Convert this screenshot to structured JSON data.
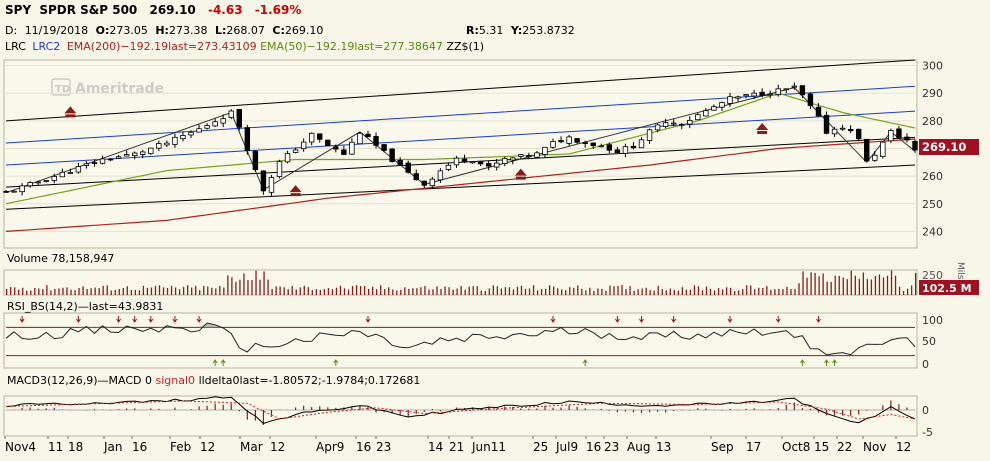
{
  "header": {
    "symbol": "SPY",
    "name": "SPDR S&P 500",
    "last": "269.10",
    "change": "-4.63",
    "change_pct": "-1.69%",
    "bar_label": "D:",
    "date": "11/19/2018",
    "open_label": "O:",
    "open": "273.05",
    "high_label": "H:",
    "high": "273.38",
    "low_label": "L:",
    "low": "268.07",
    "close_label": "C:",
    "close": "269.10",
    "r_label": "R:",
    "r": "5.31",
    "y_label": "Y:",
    "y": "253.8732"
  },
  "indicators": {
    "lrc": "LRC",
    "lrc2": "LRC2",
    "ema200": "EMA(200)",
    "ema200_vals": "−192.19last=273.43109",
    "ema50": "EMA(50)",
    "ema50_vals": "−192.19last=277.38647",
    "zz": "ZZ$(1)"
  },
  "watermark": "Ameritrade",
  "price_badge": "269.10",
  "volume_panel": {
    "label": "Volume 78,158,947",
    "badge": "102.5 M",
    "unit": "Mils",
    "tick": "250"
  },
  "rsi_panel": {
    "label": "RSI_BS(14,2)—last=43.9831",
    "ticks": [
      "100",
      "50",
      "0"
    ]
  },
  "macd_panel": {
    "label_a": "MACD3(12,26,9)—MACD 0",
    "label_b": "signal0",
    "label_c": "lldelta0last=-1.80572;-1.9784;0.172681",
    "ticks": [
      "0",
      "-5"
    ]
  },
  "x_axis_labels": [
    "Nov4",
    "11",
    "18",
    "Jan",
    "16",
    "Feb",
    "12",
    "Mar",
    "12",
    "Apr9",
    "16",
    "23",
    "14",
    "21",
    "Jun11",
    "25",
    "Jul9",
    "16",
    "23",
    "Aug",
    "13",
    "Sep",
    "17",
    "Oct8",
    "15",
    "22",
    "Nov",
    "12"
  ],
  "colors": {
    "background": "#f7f6e8",
    "ema200": "#b02020",
    "ema50": "#7aa020",
    "regression_channel": "#000000",
    "regression_inner": "#1a3cc8",
    "badge": "#a01020",
    "header_negative": "#cc0000"
  },
  "chart_data": {
    "type": "candlestick",
    "title": "SPY SPDR S&P 500",
    "ylim": [
      234,
      302
    ],
    "y_ticks": [
      240,
      250,
      260,
      270,
      280,
      290,
      300
    ],
    "close_path": [
      [
        0,
        254
      ],
      [
        4,
        258
      ],
      [
        8,
        262
      ],
      [
        12,
        266
      ],
      [
        16,
        268
      ],
      [
        20,
        272
      ],
      [
        24,
        277
      ],
      [
        28,
        283
      ],
      [
        29,
        278
      ],
      [
        31,
        262
      ],
      [
        32,
        255
      ],
      [
        34,
        265
      ],
      [
        36,
        270
      ],
      [
        38,
        275
      ],
      [
        40,
        271
      ],
      [
        42,
        268
      ],
      [
        44,
        276
      ],
      [
        46,
        271
      ],
      [
        48,
        266
      ],
      [
        50,
        261
      ],
      [
        52,
        257
      ],
      [
        54,
        262
      ],
      [
        56,
        266
      ],
      [
        58,
        266
      ],
      [
        60,
        263
      ],
      [
        62,
        266
      ],
      [
        64,
        267
      ],
      [
        66,
        268
      ],
      [
        68,
        272
      ],
      [
        70,
        274
      ],
      [
        72,
        272
      ],
      [
        74,
        271
      ],
      [
        76,
        269
      ],
      [
        78,
        271
      ],
      [
        80,
        276
      ],
      [
        82,
        280
      ],
      [
        84,
        279
      ],
      [
        86,
        282
      ],
      [
        88,
        285
      ],
      [
        90,
        288
      ],
      [
        92,
        289
      ],
      [
        94,
        290
      ],
      [
        96,
        291
      ],
      [
        98,
        292
      ],
      [
        99,
        289
      ],
      [
        100,
        285
      ],
      [
        101,
        281
      ],
      [
        102,
        276
      ],
      [
        104,
        278
      ],
      [
        106,
        274
      ],
      [
        107,
        265
      ],
      [
        108,
        268
      ],
      [
        110,
        276
      ],
      [
        112,
        273
      ],
      [
        113,
        269
      ]
    ],
    "ema200": [
      [
        0,
        240
      ],
      [
        20,
        244
      ],
      [
        40,
        252
      ],
      [
        60,
        258
      ],
      [
        80,
        264
      ],
      [
        96,
        270
      ],
      [
        113,
        273.43
      ]
    ],
    "ema50": [
      [
        0,
        250
      ],
      [
        20,
        262
      ],
      [
        36,
        266
      ],
      [
        52,
        266
      ],
      [
        70,
        268
      ],
      [
        86,
        280
      ],
      [
        96,
        290
      ],
      [
        104,
        283
      ],
      [
        113,
        277.39
      ]
    ],
    "regression_lines": [
      [
        [
          0,
          280
        ],
        [
          113,
          302
        ]
      ],
      [
        [
          0,
          272
        ],
        [
          113,
          292.5
        ]
      ],
      [
        [
          0,
          264
        ],
        [
          113,
          283.5
        ]
      ],
      [
        [
          0,
          256
        ],
        [
          113,
          274
        ]
      ],
      [
        [
          0,
          248
        ],
        [
          113,
          264
        ]
      ]
    ],
    "last_close": 269.1,
    "volume_badge_millions": 102.5,
    "rsi_last": 43.9831,
    "macd_last": -1.80572,
    "macd_signal_last": -1.9784,
    "macd_delta_last": 0.172681
  }
}
